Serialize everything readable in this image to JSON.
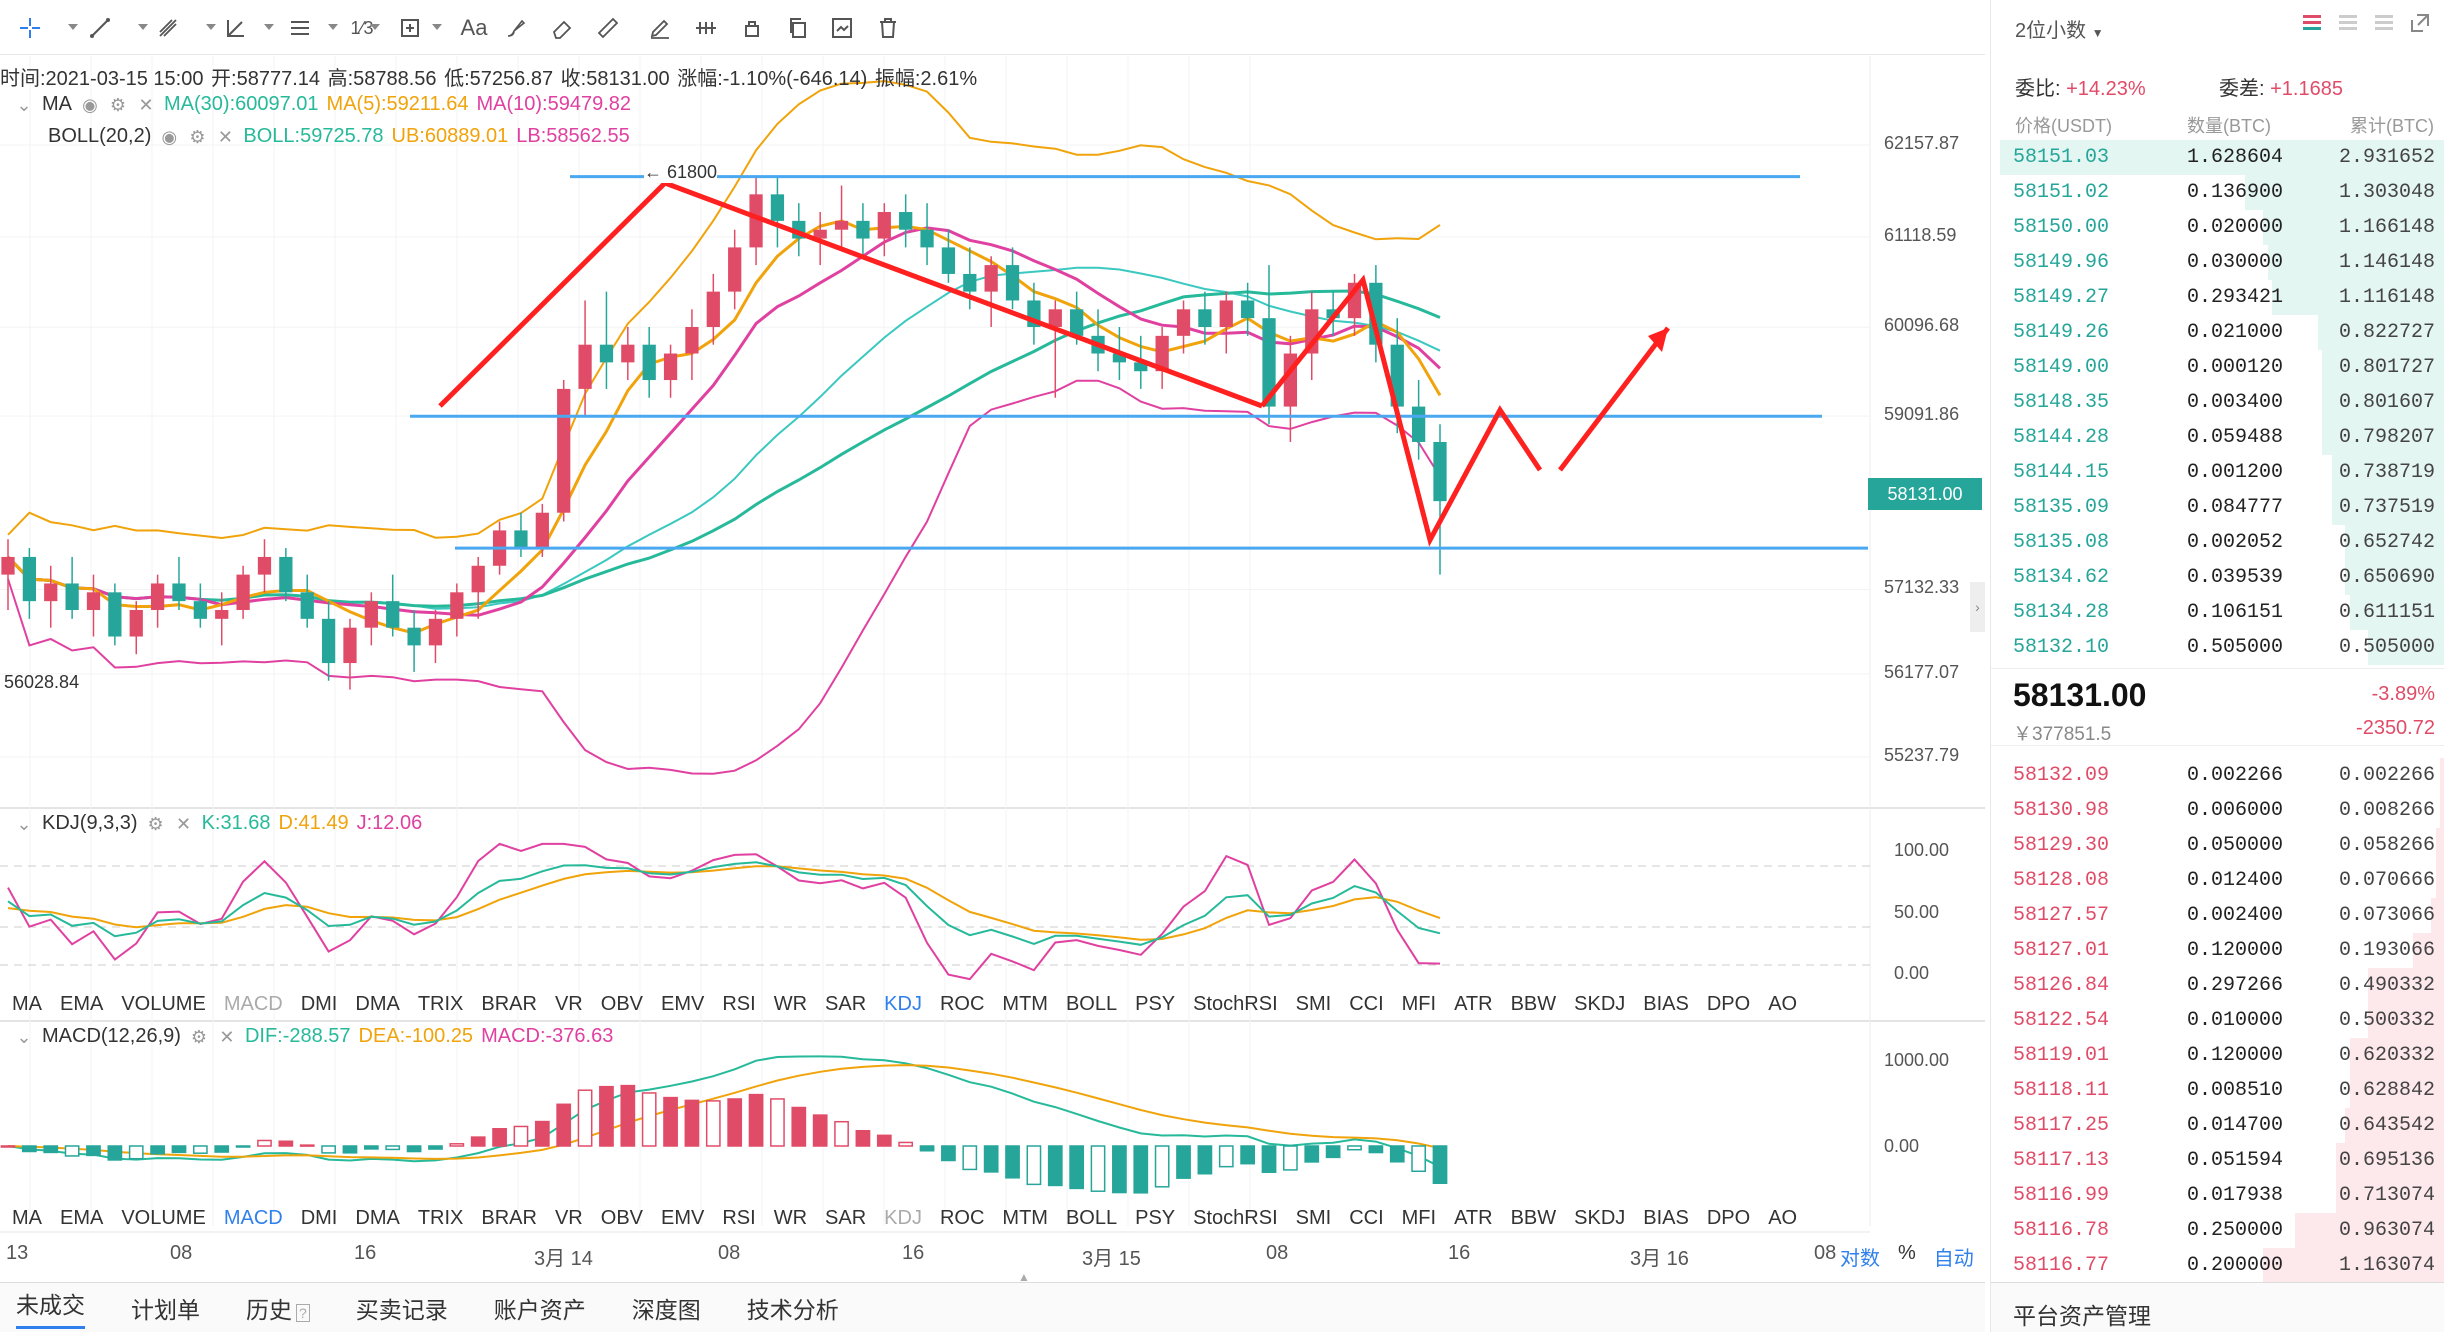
{
  "toolbar": {
    "tools": [
      "crosshair-icon",
      "line-icon",
      "fib-icon",
      "angle-icon",
      "parallel-icon",
      "pitchfork-icon",
      "measure-icon",
      "text-tool-icon",
      "brush-icon",
      "ruler-icon",
      "pen-icon",
      "pattern-icon",
      "lock-icon",
      "copy-icon",
      "template-icon",
      "trash-icon"
    ],
    "text_tool_label": "Aa",
    "pitchfork_label": "1⁄3"
  },
  "info": {
    "time": "时间:2021-03-15 15:00",
    "open": "开:58777.14",
    "high": "高:58788.56",
    "low": "低:57256.87",
    "close": "收:58131.00",
    "change": "涨幅:-1.10%(-646.14)",
    "amplitude": "振幅:2.61%"
  },
  "ma_legend": {
    "name": "MA",
    "ma30": "MA(30):60097.01",
    "ma5": "MA(5):59211.64",
    "ma10": "MA(10):59479.82"
  },
  "boll_legend": {
    "name": "BOLL(20,2)",
    "boll": "BOLL:59725.78",
    "ub": "UB:60889.01",
    "lb": "LB:58562.55"
  },
  "annotations": {
    "high_label": "← 61800",
    "low_label": "56028.84",
    "current_price": "58131.00"
  },
  "price_axis": [
    "62157.87",
    "61118.59",
    "60096.68",
    "59091.86",
    "57132.33",
    "56177.07",
    "55237.79"
  ],
  "kdj_legend": {
    "name": "KDJ(9,3,3)",
    "k": "K:31.68",
    "d": "D:41.49",
    "j": "J:12.06"
  },
  "kdj_axis": [
    "100.00",
    "50.00",
    "0.00"
  ],
  "macd_legend": {
    "name": "MACD(12,26,9)",
    "dif": "DIF:-288.57",
    "dea": "DEA:-100.25",
    "macd": "MACD:-376.63"
  },
  "macd_axis": [
    "1000.00",
    "0.00"
  ],
  "indicator_tabs": [
    "MA",
    "EMA",
    "VOLUME",
    "MACD",
    "DMI",
    "DMA",
    "TRIX",
    "BRAR",
    "VR",
    "OBV",
    "EMV",
    "RSI",
    "WR",
    "SAR",
    "KDJ",
    "ROC",
    "MTM",
    "BOLL",
    "PSY",
    "StochRSI",
    "SMI",
    "CCI",
    "MFI",
    "ATR",
    "BBW",
    "SKDJ",
    "BIAS",
    "DPO",
    "AO"
  ],
  "time_axis": [
    "13",
    "08",
    "16",
    "3月 14",
    "08",
    "16",
    "3月 15",
    "08",
    "16",
    "3月 16",
    "08"
  ],
  "axis_options": {
    "log": "对数",
    "percent": "%",
    "auto": "自动"
  },
  "bottom_tabs": [
    "未成交",
    "计划单",
    "历史",
    "买卖记录",
    "账户资产",
    "深度图",
    "技术分析"
  ],
  "sidebar": {
    "precision": "2位小数",
    "commission_ratio_label": "委比:",
    "commission_ratio": "+14.23%",
    "commission_diff_label": "委差:",
    "commission_diff": "+1.1685",
    "col_price": "价格(USDT)",
    "col_qty": "数量(BTC)",
    "col_cum": "累计(BTC)",
    "bids": [
      {
        "price": "58151.03",
        "qty": "1.628604",
        "cum": "2.931652",
        "depth": 0.98
      },
      {
        "price": "58151.02",
        "qty": "0.136900",
        "cum": "1.303048",
        "depth": 0.44
      },
      {
        "price": "58150.00",
        "qty": "0.020000",
        "cum": "1.166148",
        "depth": 0.4
      },
      {
        "price": "58149.96",
        "qty": "0.030000",
        "cum": "1.146148",
        "depth": 0.39
      },
      {
        "price": "58149.27",
        "qty": "0.293421",
        "cum": "1.116148",
        "depth": 0.38
      },
      {
        "price": "58149.26",
        "qty": "0.021000",
        "cum": "0.822727",
        "depth": 0.28
      },
      {
        "price": "58149.00",
        "qty": "0.000120",
        "cum": "0.801727",
        "depth": 0.27
      },
      {
        "price": "58148.35",
        "qty": "0.003400",
        "cum": "0.801607",
        "depth": 0.27
      },
      {
        "price": "58144.28",
        "qty": "0.059488",
        "cum": "0.798207",
        "depth": 0.27
      },
      {
        "price": "58144.15",
        "qty": "0.001200",
        "cum": "0.738719",
        "depth": 0.25
      },
      {
        "price": "58135.09",
        "qty": "0.084777",
        "cum": "0.737519",
        "depth": 0.25
      },
      {
        "price": "58135.08",
        "qty": "0.002052",
        "cum": "0.652742",
        "depth": 0.22
      },
      {
        "price": "58134.62",
        "qty": "0.039539",
        "cum": "0.650690",
        "depth": 0.22
      },
      {
        "price": "58134.28",
        "qty": "0.106151",
        "cum": "0.611151",
        "depth": 0.21
      },
      {
        "price": "58132.10",
        "qty": "0.505000",
        "cum": "0.505000",
        "depth": 0.17
      }
    ],
    "last_price": "58131.00",
    "last_change_pct": "-3.89%",
    "last_cny": "￥377851.5",
    "last_change": "-2350.72",
    "asks": [
      {
        "price": "58132.09",
        "qty": "0.002266",
        "cum": "0.002266",
        "depth": 0.01
      },
      {
        "price": "58130.98",
        "qty": "0.006000",
        "cum": "0.008266",
        "depth": 0.01
      },
      {
        "price": "58129.30",
        "qty": "0.050000",
        "cum": "0.058266",
        "depth": 0.02
      },
      {
        "price": "58128.08",
        "qty": "0.012400",
        "cum": "0.070666",
        "depth": 0.02
      },
      {
        "price": "58127.57",
        "qty": "0.002400",
        "cum": "0.073066",
        "depth": 0.03
      },
      {
        "price": "58127.01",
        "qty": "0.120000",
        "cum": "0.193066",
        "depth": 0.07
      },
      {
        "price": "58126.84",
        "qty": "0.297266",
        "cum": "0.490332",
        "depth": 0.17
      },
      {
        "price": "58122.54",
        "qty": "0.010000",
        "cum": "0.500332",
        "depth": 0.17
      },
      {
        "price": "58119.01",
        "qty": "0.120000",
        "cum": "0.620332",
        "depth": 0.21
      },
      {
        "price": "58118.11",
        "qty": "0.008510",
        "cum": "0.628842",
        "depth": 0.21
      },
      {
        "price": "58117.25",
        "qty": "0.014700",
        "cum": "0.643542",
        "depth": 0.22
      },
      {
        "price": "58117.13",
        "qty": "0.051594",
        "cum": "0.695136",
        "depth": 0.24
      },
      {
        "price": "58116.99",
        "qty": "0.017938",
        "cum": "0.713074",
        "depth": 0.24
      },
      {
        "price": "58116.78",
        "qty": "0.250000",
        "cum": "0.963074",
        "depth": 0.33
      },
      {
        "price": "58116.77",
        "qty": "0.200000",
        "cum": "1.163074",
        "depth": 0.4
      }
    ],
    "footer": "平台资产管理"
  },
  "colors": {
    "up": "#e04c68",
    "down": "#26a69a",
    "accent": "#2f80ed",
    "ma5": "#f0a30a",
    "ma10": "#e040a0",
    "ma30": "#26b99a",
    "boll": "#3ac8c0",
    "draw_red": "#ff2020",
    "hline": "#4aa8f0"
  },
  "chart_data": {
    "type": "candlestick",
    "interval": "1h",
    "y_axis_ticks": [
      62157.87,
      61118.59,
      60096.68,
      59091.86,
      57132.33,
      56177.07,
      55237.79
    ],
    "candles": [
      [
        57300,
        57700,
        56900,
        57500
      ],
      [
        57500,
        57600,
        56800,
        57000
      ],
      [
        57000,
        57400,
        56700,
        57200
      ],
      [
        57200,
        57500,
        56800,
        56900
      ],
      [
        56900,
        57300,
        56600,
        57100
      ],
      [
        57100,
        57200,
        56500,
        56600
      ],
      [
        56600,
        57000,
        56400,
        56900
      ],
      [
        56900,
        57300,
        56700,
        57200
      ],
      [
        57200,
        57500,
        56900,
        57000
      ],
      [
        57000,
        57200,
        56700,
        56800
      ],
      [
        56800,
        57100,
        56500,
        56900
      ],
      [
        56900,
        57400,
        56800,
        57300
      ],
      [
        57300,
        57700,
        57100,
        57500
      ],
      [
        57500,
        57600,
        57000,
        57100
      ],
      [
        57100,
        57300,
        56700,
        56800
      ],
      [
        56800,
        57000,
        56100,
        56300
      ],
      [
        56300,
        56800,
        56000,
        56700
      ],
      [
        56700,
        57100,
        56500,
        57000
      ],
      [
        57000,
        57300,
        56600,
        56700
      ],
      [
        56700,
        56900,
        56200,
        56500
      ],
      [
        56500,
        56900,
        56300,
        56800
      ],
      [
        56800,
        57200,
        56600,
        57100
      ],
      [
        57100,
        57500,
        56800,
        57400
      ],
      [
        57400,
        57900,
        57300,
        57800
      ],
      [
        57800,
        58000,
        57500,
        57600
      ],
      [
        57600,
        58100,
        57500,
        58000
      ],
      [
        58000,
        59500,
        57900,
        59400
      ],
      [
        59400,
        60400,
        59100,
        59900
      ],
      [
        59900,
        60500,
        59400,
        59700
      ],
      [
        59700,
        60100,
        59500,
        59900
      ],
      [
        59900,
        60100,
        59300,
        59500
      ],
      [
        59500,
        59900,
        59300,
        59800
      ],
      [
        59800,
        60300,
        59500,
        60100
      ],
      [
        60100,
        60700,
        59900,
        60500
      ],
      [
        60500,
        61200,
        60300,
        61000
      ],
      [
        61000,
        61800,
        60800,
        61600
      ],
      [
        61600,
        61800,
        61000,
        61300
      ],
      [
        61300,
        61500,
        60900,
        61100
      ],
      [
        61100,
        61400,
        60800,
        61200
      ],
      [
        61200,
        61700,
        61000,
        61300
      ],
      [
        61300,
        61500,
        60900,
        61100
      ],
      [
        61100,
        61500,
        60900,
        61400
      ],
      [
        61400,
        61600,
        61000,
        61200
      ],
      [
        61200,
        61500,
        60800,
        61000
      ],
      [
        61000,
        61200,
        60600,
        60700
      ],
      [
        60700,
        61000,
        60300,
        60500
      ],
      [
        60500,
        60900,
        60100,
        60800
      ],
      [
        60800,
        61000,
        60300,
        60400
      ],
      [
        60400,
        60600,
        59900,
        60100
      ],
      [
        60100,
        60400,
        59300,
        60300
      ],
      [
        60300,
        60500,
        59900,
        60000
      ],
      [
        60000,
        60300,
        59600,
        59800
      ],
      [
        59800,
        60100,
        59500,
        59700
      ],
      [
        59700,
        60000,
        59400,
        59600
      ],
      [
        59600,
        60100,
        59400,
        60000
      ],
      [
        60000,
        60400,
        59800,
        60300
      ],
      [
        60300,
        60500,
        59900,
        60100
      ],
      [
        60100,
        60500,
        59800,
        60400
      ],
      [
        60400,
        60600,
        60000,
        60200
      ],
      [
        60200,
        60800,
        59000,
        59200
      ],
      [
        59200,
        60000,
        58800,
        59800
      ],
      [
        59800,
        60500,
        59500,
        60300
      ],
      [
        60300,
        60500,
        60000,
        60200
      ],
      [
        60200,
        60700,
        60000,
        60600
      ],
      [
        60600,
        60800,
        59700,
        59900
      ],
      [
        59900,
        60200,
        58900,
        59200
      ],
      [
        59200,
        59500,
        58600,
        58800
      ],
      [
        58800,
        59000,
        57300,
        58131
      ]
    ],
    "trendlines_price": {
      "resistance": 61800,
      "mid": 59091,
      "support": 57600
    }
  }
}
